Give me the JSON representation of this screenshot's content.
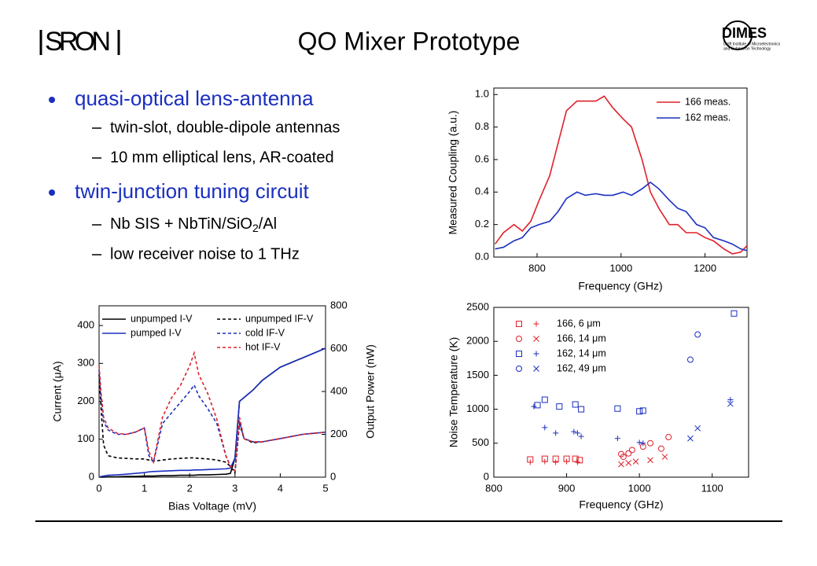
{
  "title": "QO Mixer Prototype",
  "logos": {
    "left": "SRON",
    "right": "DIMES",
    "right_caption": [
      "Delft Institute of Microelectronics",
      "and Submicron Technology"
    ]
  },
  "bullets": [
    {
      "text": "quasi-optical lens-antenna",
      "items": [
        "twin-slot, double-dipole antennas",
        "10 mm elliptical lens, AR-coated"
      ]
    },
    {
      "text": "twin-junction tuning circuit",
      "items": [
        [
          "Nb SIS + NbTiN/SiO",
          "2",
          "/Al"
        ],
        "low receiver noise to 1 THz"
      ]
    }
  ],
  "chart_data": [
    {
      "type": "line",
      "xlabel": "Frequency (GHz)",
      "ylabel": "Measured Coupling (a.u.)",
      "legend": "upper right",
      "xlim": [
        697,
        1300
      ],
      "xticks": [
        800,
        1000,
        1200
      ],
      "ylim": [
        0,
        1.04
      ],
      "yticks": [
        {
          "value": 0,
          "label": "0.0"
        },
        0.2,
        0.4,
        0.6,
        0.8,
        {
          "value": 1,
          "label": "1.0"
        }
      ],
      "x": [
        700,
        720,
        745,
        765,
        785,
        805,
        830,
        850,
        870,
        895,
        915,
        940,
        960,
        980,
        1005,
        1025,
        1050,
        1070,
        1090,
        1115,
        1135,
        1155,
        1180,
        1200,
        1220,
        1245,
        1265,
        1285,
        1300
      ],
      "series": [
        {
          "name": "166 meas.",
          "color": "#e0202a",
          "values": [
            0.08,
            0.15,
            0.2,
            0.16,
            0.22,
            0.35,
            0.5,
            0.7,
            0.9,
            0.96,
            0.96,
            0.96,
            0.99,
            0.92,
            0.85,
            0.8,
            0.6,
            0.4,
            0.3,
            0.2,
            0.2,
            0.15,
            0.15,
            0.12,
            0.1,
            0.05,
            0.02,
            0.03,
            0.07
          ]
        },
        {
          "name": "162 meas.",
          "color": "#1a2fbf",
          "values": [
            0.05,
            0.06,
            0.1,
            0.12,
            0.18,
            0.2,
            0.22,
            0.28,
            0.36,
            0.4,
            0.38,
            0.39,
            0.38,
            0.38,
            0.4,
            0.38,
            0.42,
            0.46,
            0.42,
            0.35,
            0.3,
            0.28,
            0.2,
            0.18,
            0.12,
            0.1,
            0.08,
            0.05,
            0.04
          ]
        }
      ]
    },
    {
      "type": "line",
      "xlabel": "Bias Voltage (mV)",
      "ylabel": "Current (μA)",
      "y2label": "Output Power (nW)",
      "legend": "upper left",
      "xlim": [
        0,
        5
      ],
      "xticks": [
        0,
        1,
        2,
        3,
        4,
        5
      ],
      "ylim": [
        0,
        452
      ],
      "yticks": [
        0,
        100,
        200,
        300,
        400
      ],
      "y2lim": [
        0,
        800
      ],
      "y2ticks": [
        0,
        200,
        400,
        600,
        800
      ],
      "x": [
        0,
        0.05,
        0.1,
        0.2,
        0.4,
        0.6,
        0.8,
        1.0,
        1.1,
        1.2,
        1.4,
        1.6,
        1.8,
        2.0,
        2.1,
        2.2,
        2.4,
        2.6,
        2.8,
        2.9,
        3.0,
        3.1,
        3.2,
        3.4,
        3.6,
        4.0,
        4.5,
        5.0
      ],
      "series": [
        {
          "name": "unpumped I-V",
          "color": "#000000",
          "dash": false,
          "values": [
            0,
            0,
            0,
            1,
            1,
            2,
            2,
            3,
            3,
            3,
            4,
            4,
            5,
            5,
            5,
            6,
            6,
            7,
            8,
            10,
            50,
            200,
            210,
            230,
            255,
            290,
            315,
            340
          ]
        },
        {
          "name": "pumped I-V",
          "color": "#1a2fbf",
          "dash": false,
          "values": [
            0,
            2,
            3,
            5,
            6,
            8,
            10,
            12,
            14,
            15,
            16,
            17,
            18,
            18,
            19,
            19,
            20,
            21,
            22,
            24,
            50,
            200,
            210,
            230,
            255,
            290,
            315,
            340
          ]
        },
        {
          "name": "unpumped IF-V",
          "color": "#000000",
          "dash": true,
          "axis": "y2",
          "values": [
            480,
            300,
            150,
            100,
            90,
            88,
            85,
            85,
            80,
            75,
            80,
            85,
            88,
            90,
            90,
            88,
            85,
            80,
            70,
            50,
            20,
            250,
            180,
            160,
            165,
            180,
            200,
            210
          ]
        },
        {
          "name": "cold IF-V",
          "color": "#1a2fbf",
          "dash": true,
          "axis": "y2",
          "values": [
            500,
            350,
            260,
            220,
            200,
            200,
            210,
            230,
            100,
            70,
            250,
            300,
            350,
            400,
            430,
            380,
            320,
            250,
            100,
            50,
            30,
            260,
            180,
            165,
            165,
            180,
            200,
            210
          ]
        },
        {
          "name": "hot IF-V",
          "color": "#e0202a",
          "dash": true,
          "axis": "y2",
          "values": [
            520,
            380,
            280,
            230,
            205,
            200,
            210,
            230,
            120,
            70,
            280,
            370,
            430,
            520,
            580,
            480,
            390,
            270,
            100,
            50,
            30,
            280,
            180,
            165,
            165,
            180,
            200,
            210
          ]
        }
      ]
    },
    {
      "type": "scatter",
      "xlabel": "Frequency (GHz)",
      "ylabel": "Noise Temperature (K)",
      "legend": "upper left",
      "xlim": [
        800,
        1150
      ],
      "xticks": [
        800,
        900,
        1000,
        1100
      ],
      "ylim": [
        0,
        2500
      ],
      "yticks": [
        0,
        500,
        1000,
        1500,
        2000,
        2500
      ],
      "series": [
        {
          "name": "166, 6 μm",
          "color": "#e0202a",
          "groups": [
            {
              "marker": "square",
              "x": [
                850,
                870,
                885,
                900,
                912,
                918
              ],
              "values": [
                260,
                270,
                270,
                270,
                270,
                250
              ]
            },
            {
              "marker": "plus",
              "x": [
                850,
                870,
                885,
                900,
                915
              ],
              "values": [
                220,
                230,
                220,
                230,
                220
              ]
            }
          ]
        },
        {
          "name": "166, 14 μm",
          "color": "#e0202a",
          "groups": [
            {
              "marker": "circle",
              "x": [
                975,
                978,
                985,
                990,
                1005,
                1015,
                1030,
                1040
              ],
              "values": [
                340,
                300,
                350,
                400,
                450,
                500,
                420,
                590
              ]
            },
            {
              "marker": "cross",
              "x": [
                975,
                985,
                995,
                1015,
                1035
              ],
              "values": [
                190,
                210,
                230,
                250,
                300
              ]
            }
          ]
        },
        {
          "name": "162, 14 μm",
          "color": "#1a2fbf",
          "groups": [
            {
              "marker": "square",
              "x": [
                860,
                870,
                890,
                912,
                920,
                970,
                1000,
                1005,
                1130
              ],
              "values": [
                1060,
                1140,
                1040,
                1070,
                1000,
                1010,
                970,
                980,
                2410
              ]
            },
            {
              "marker": "plus",
              "x": [
                855,
                870,
                885,
                910,
                915,
                920,
                970,
                1000,
                1005,
                1125
              ],
              "values": [
                1040,
                730,
                650,
                670,
                650,
                600,
                570,
                510,
                500,
                1140
              ]
            }
          ]
        },
        {
          "name": "162, 49 μm",
          "color": "#1a2fbf",
          "groups": [
            {
              "marker": "circle",
              "x": [
                1070,
                1080
              ],
              "values": [
                1730,
                2100
              ]
            },
            {
              "marker": "cross",
              "x": [
                1070,
                1080,
                1125
              ],
              "values": [
                570,
                720,
                1080
              ]
            }
          ]
        }
      ]
    }
  ]
}
